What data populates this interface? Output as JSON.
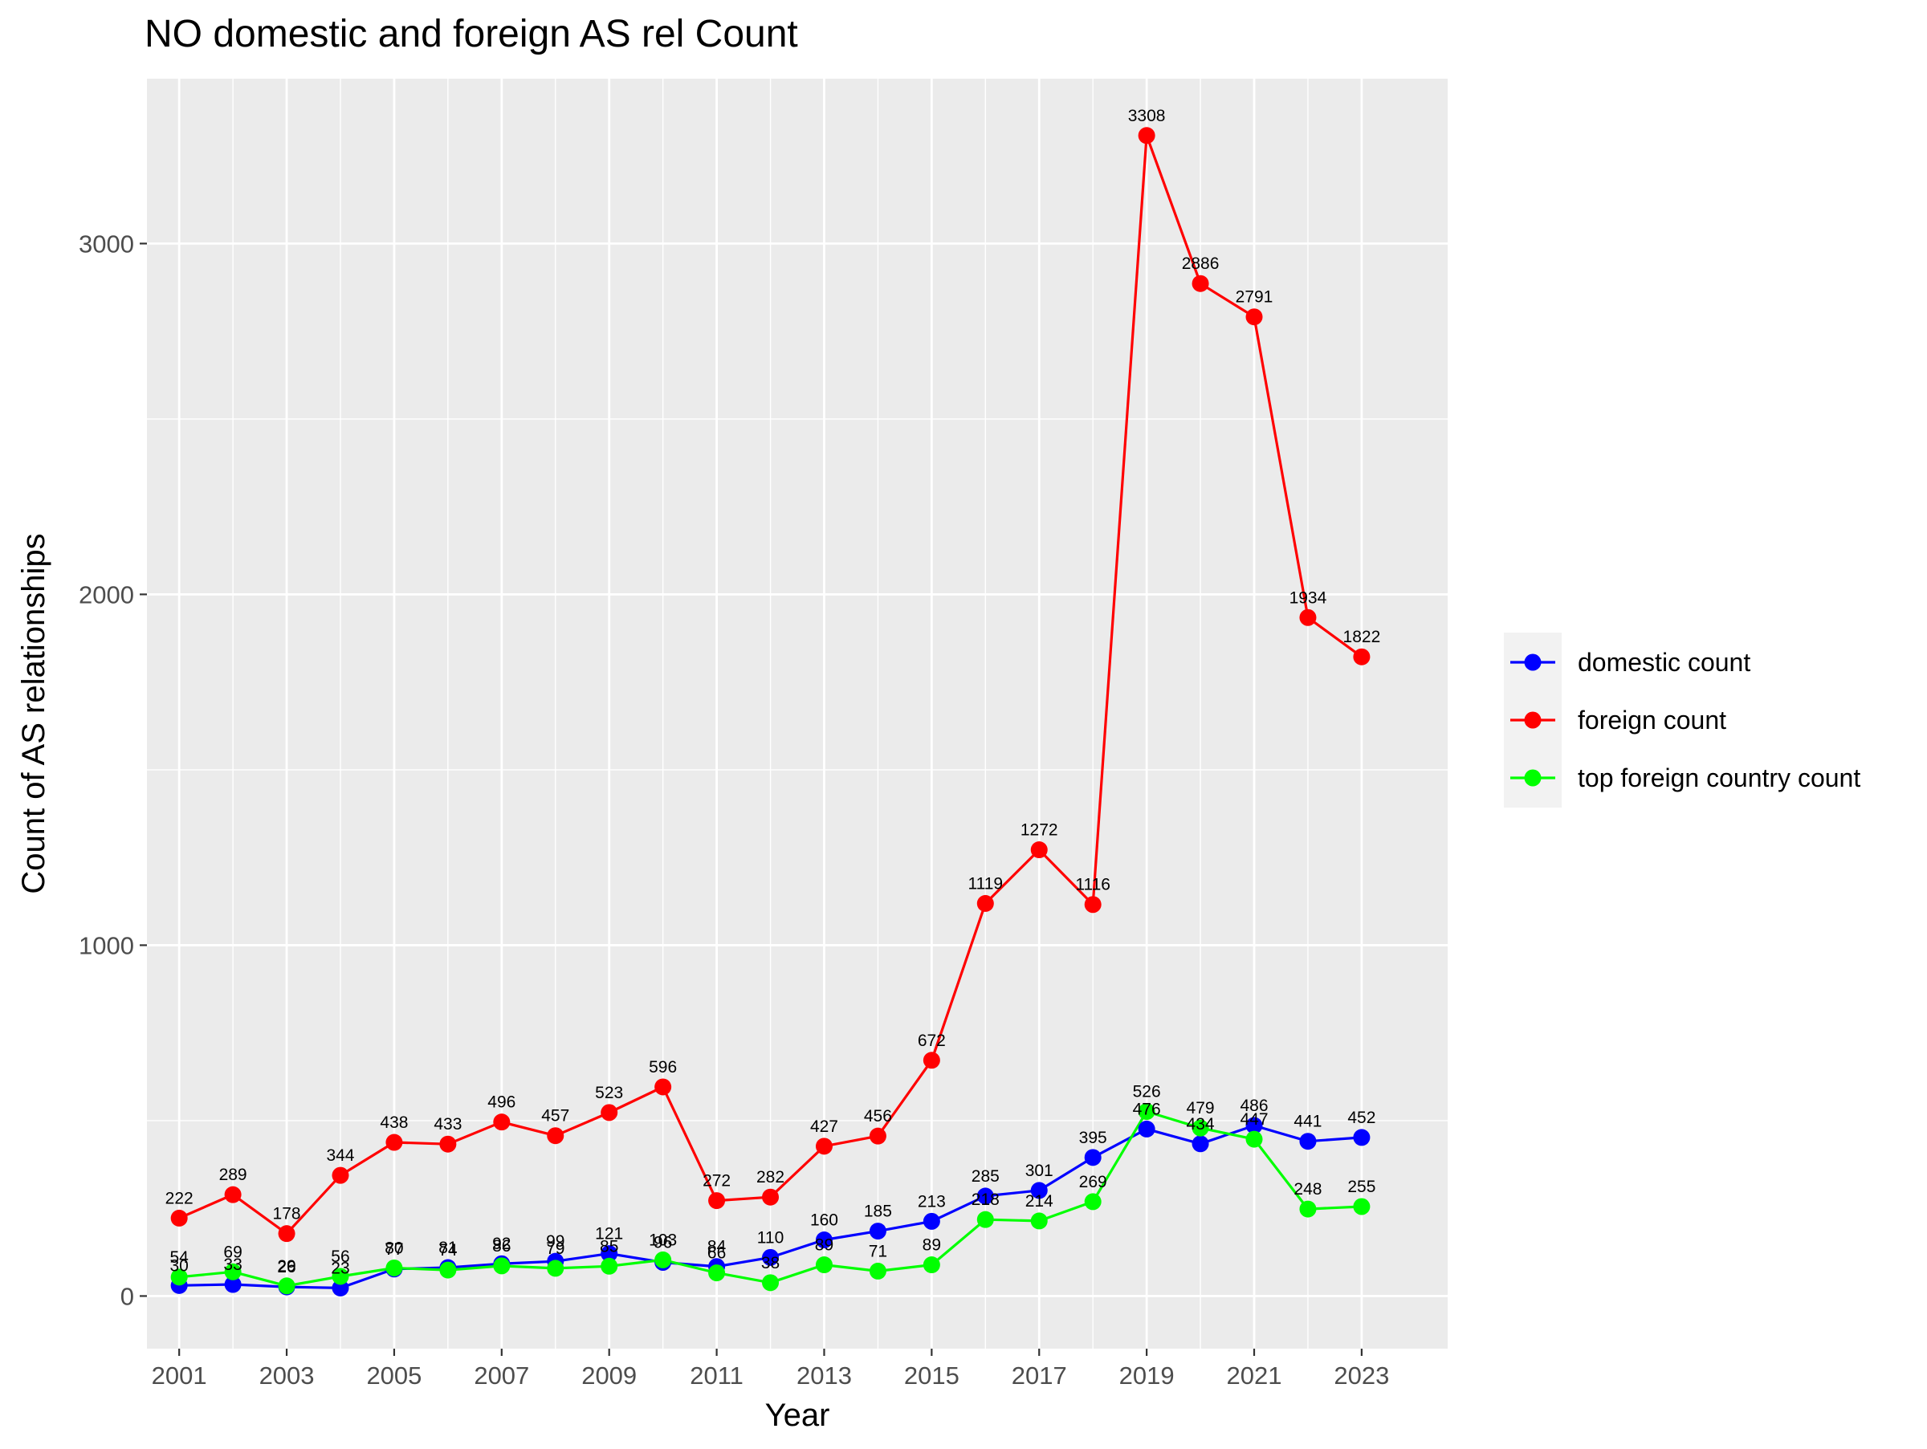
{
  "chart_data": {
    "type": "line",
    "title": "NO domestic and foreign AS rel Count",
    "xlabel": "Year",
    "ylabel": "Count of AS relationships",
    "x": [
      2001,
      2002,
      2003,
      2004,
      2005,
      2006,
      2007,
      2008,
      2009,
      2010,
      2011,
      2012,
      2013,
      2014,
      2015,
      2016,
      2017,
      2018,
      2019,
      2020,
      2021,
      2022,
      2023
    ],
    "x_ticks": [
      2001,
      2003,
      2005,
      2007,
      2009,
      2011,
      2013,
      2015,
      2017,
      2019,
      2021,
      2023
    ],
    "x_tick_labels": [
      "2001",
      "2003",
      "2005",
      "2007",
      "2009",
      "2011",
      "2013",
      "2015",
      "2017",
      "2019",
      "2021",
      "2023"
    ],
    "y_ticks": [
      0,
      1000,
      2000,
      3000
    ],
    "y_tick_labels": [
      "0",
      "1000",
      "2000",
      "3000"
    ],
    "xlim": [
      2000.4,
      2024.6
    ],
    "ylim": [
      -150,
      3470
    ],
    "grid": true,
    "legend_position": "right",
    "series": [
      {
        "name": "domestic count",
        "color": "#0000ff",
        "values": [
          30,
          33,
          26,
          23,
          77,
          81,
          92,
          99,
          121,
          96,
          84,
          110,
          160,
          185,
          213,
          285,
          301,
          395,
          476,
          434,
          486,
          441,
          452
        ],
        "labels": [
          "30",
          "33",
          "26",
          "23",
          "77",
          "81",
          "92",
          "99",
          "121",
          "96",
          "84",
          "110",
          "160",
          "185",
          "213",
          "285",
          "301",
          "395",
          "476",
          "434",
          "486",
          "441",
          "452"
        ]
      },
      {
        "name": "foreign count",
        "color": "#ff0000",
        "values": [
          222,
          289,
          178,
          344,
          438,
          433,
          496,
          457,
          523,
          596,
          272,
          282,
          427,
          456,
          672,
          1119,
          1272,
          1116,
          3308,
          2886,
          2791,
          1934,
          1822
        ],
        "labels": [
          "222",
          "289",
          "178",
          "344",
          "438",
          "433",
          "496",
          "457",
          "523",
          "596",
          "272",
          "282",
          "427",
          "456",
          "672",
          "1119",
          "1272",
          "1116",
          "3308",
          "2886",
          "2791",
          "1934",
          "1822"
        ]
      },
      {
        "name": "top foreign country count",
        "color": "#00ff00",
        "values": [
          54,
          69,
          29,
          56,
          80,
          74,
          86,
          79,
          85,
          103,
          66,
          38,
          89,
          71,
          89,
          218,
          214,
          269,
          526,
          479,
          447,
          248,
          255
        ],
        "labels": [
          "54",
          "69",
          "29",
          "56",
          "80",
          "74",
          "86",
          "79",
          "85",
          "103",
          "66",
          "38",
          "89",
          "71",
          "89",
          "218",
          "214",
          "269",
          "526",
          "479",
          "447",
          "248",
          "255"
        ]
      }
    ]
  }
}
